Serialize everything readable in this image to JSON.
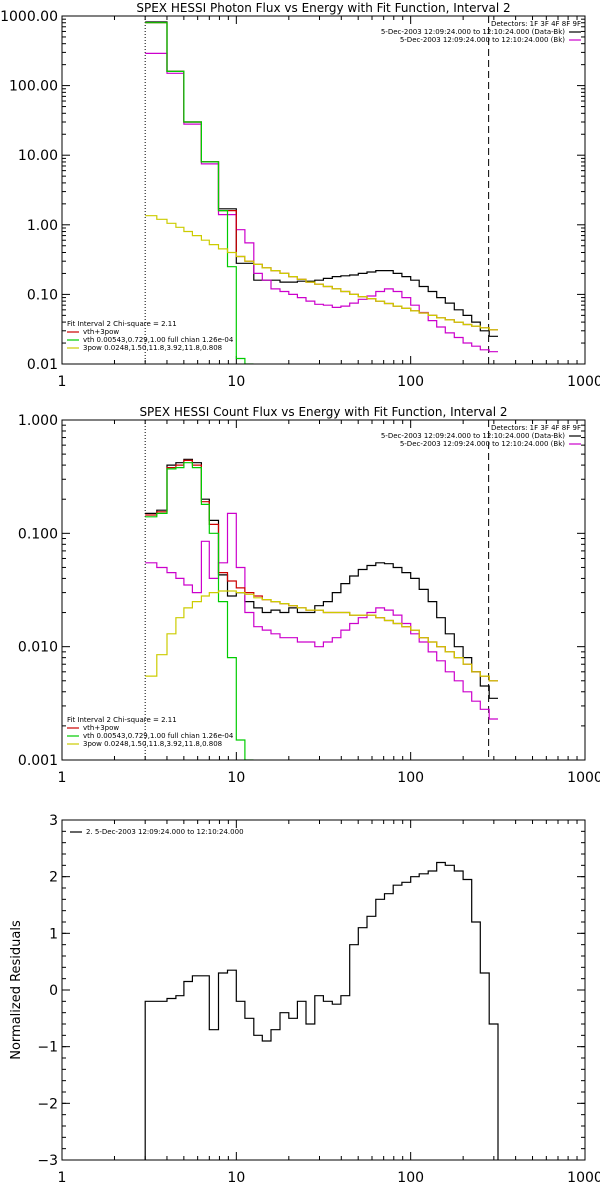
{
  "chart_data": [
    {
      "type": "line",
      "title": "SPEX HESSI Photon Flux vs Energy with Fit Function, Interval 2",
      "xlabel": "",
      "ylabel": "",
      "x_scale": "log",
      "y_scale": "log",
      "xlim": [
        1,
        1000
      ],
      "ylim": [
        0.01,
        1000
      ],
      "x_ticks": [
        "1",
        "10",
        "100",
        "1000"
      ],
      "y_ticks": [
        "0.01",
        "0.10",
        "1.00",
        "10.00",
        "100.00",
        "1000.00"
      ],
      "vlines": [
        {
          "x": 3,
          "style": "dotted"
        },
        {
          "x": 280,
          "style": "dashed"
        }
      ],
      "legend_tr": {
        "header": "Detectors: 1F 3F 4F 8F 9F",
        "entries": [
          {
            "text": "5-Dec-2003 12:09:24.000 to 12:10:24.000 (Data-Bk)",
            "color": "#000000"
          },
          {
            "text": "5-Dec-2003 12:09:24.000 to 12:10:24.000 (Bk)",
            "color": "#cc00cc"
          }
        ]
      },
      "legend_bl": {
        "header": "Fit Interval 2   Chi-square = 2.11",
        "entries": [
          {
            "text": "vth+3pow",
            "color": "#cc0000"
          },
          {
            "text": "vth 0.00543,0.729,1.00  full chian 1.26e-04",
            "color": "#00cc00"
          },
          {
            "text": "3pow 0.0248,1.50,11.8,3.92,11.8,0.808",
            "color": "#cccc00"
          }
        ]
      },
      "series": [
        {
          "name": "Data-Bk",
          "color": "#000000",
          "x": [
            3,
            3.5,
            4,
            4.5,
            5,
            5.6,
            6.3,
            7,
            7.9,
            8.9,
            10,
            11.2,
            12.6,
            14.1,
            15.8,
            17.8,
            20,
            22.4,
            25.1,
            28.2,
            31.6,
            35.5,
            39.8,
            44.7,
            50.1,
            56.2,
            63.1,
            70.8,
            79.4,
            89.1,
            100,
            112,
            126,
            141,
            158,
            178,
            200,
            224,
            251,
            282
          ],
          "y": [
            820,
            820,
            160,
            160,
            30,
            30,
            8,
            8,
            1.7,
            1.7,
            0.28,
            0.28,
            0.16,
            0.16,
            0.16,
            0.15,
            0.15,
            0.155,
            0.155,
            0.16,
            0.17,
            0.18,
            0.185,
            0.19,
            0.2,
            0.21,
            0.22,
            0.22,
            0.2,
            0.18,
            0.16,
            0.13,
            0.11,
            0.09,
            0.075,
            0.06,
            0.05,
            0.04,
            0.03,
            0.025
          ]
        },
        {
          "name": "Bk",
          "color": "#cc00cc",
          "x": [
            3,
            3.5,
            4,
            4.5,
            5,
            5.6,
            6.3,
            7,
            7.9,
            8.9,
            10,
            11.2,
            12.6,
            14.1,
            15.8,
            17.8,
            20,
            22.4,
            25.1,
            28.2,
            31.6,
            35.5,
            39.8,
            44.7,
            50.1,
            56.2,
            63.1,
            70.8,
            79.4,
            89.1,
            100,
            112,
            126,
            141,
            158,
            178,
            200,
            224,
            251,
            282
          ],
          "y": [
            290,
            290,
            150,
            150,
            28,
            28,
            7.5,
            7.5,
            1.4,
            1.4,
            0.85,
            0.55,
            0.2,
            0.16,
            0.12,
            0.11,
            0.1,
            0.09,
            0.08,
            0.072,
            0.07,
            0.065,
            0.068,
            0.075,
            0.085,
            0.095,
            0.11,
            0.12,
            0.11,
            0.09,
            0.07,
            0.055,
            0.042,
            0.034,
            0.028,
            0.024,
            0.02,
            0.018,
            0.016,
            0.015
          ]
        },
        {
          "name": "vth+3pow",
          "color": "#cc0000",
          "x": [
            3,
            3.5,
            4,
            4.5,
            5,
            5.6,
            6.3,
            7,
            7.9,
            8.9,
            10,
            11.2,
            12.6,
            14.1,
            15.8,
            17.8,
            20,
            22.4,
            25.1,
            28.2,
            31.6,
            35.5,
            39.8,
            44.7,
            50.1,
            56.2,
            63.1,
            70.8,
            79.4,
            89.1,
            100,
            112,
            126,
            141,
            158,
            178,
            200,
            224,
            251,
            282
          ],
          "y": [
            800,
            800,
            160,
            160,
            30,
            30,
            8,
            8,
            1.6,
            1.6,
            0.35,
            0.3,
            0.27,
            0.24,
            0.22,
            0.2,
            0.18,
            0.165,
            0.15,
            0.14,
            0.13,
            0.12,
            0.11,
            0.1,
            0.093,
            0.087,
            0.08,
            0.074,
            0.068,
            0.063,
            0.058,
            0.054,
            0.05,
            0.046,
            0.043,
            0.04,
            0.037,
            0.035,
            0.033,
            0.031
          ]
        },
        {
          "name": "vth",
          "color": "#00cc00",
          "x": [
            3,
            3.5,
            4,
            4.5,
            5,
            5.6,
            6.3,
            7,
            7.9,
            8.9,
            10,
            11.2
          ],
          "y": [
            800,
            800,
            160,
            160,
            30,
            30,
            8,
            8,
            1.6,
            0.25,
            0.012,
            0.0001
          ]
        },
        {
          "name": "3pow",
          "color": "#cccc00",
          "x": [
            3,
            3.5,
            4,
            4.5,
            5,
            5.6,
            6.3,
            7,
            7.9,
            8.9,
            10,
            11.2,
            12.6,
            14.1,
            15.8,
            17.8,
            20,
            22.4,
            25.1,
            28.2,
            31.6,
            35.5,
            39.8,
            44.7,
            50.1,
            56.2,
            63.1,
            70.8,
            79.4,
            89.1,
            100,
            112,
            126,
            141,
            158,
            178,
            200,
            224,
            251,
            282
          ],
          "y": [
            1.35,
            1.2,
            1.05,
            0.92,
            0.8,
            0.7,
            0.6,
            0.52,
            0.45,
            0.4,
            0.35,
            0.3,
            0.27,
            0.24,
            0.22,
            0.2,
            0.18,
            0.165,
            0.15,
            0.14,
            0.13,
            0.12,
            0.11,
            0.1,
            0.093,
            0.087,
            0.08,
            0.074,
            0.068,
            0.063,
            0.058,
            0.054,
            0.05,
            0.046,
            0.043,
            0.04,
            0.037,
            0.035,
            0.033,
            0.031
          ]
        }
      ]
    },
    {
      "type": "line",
      "title": "SPEX HESSI Count Flux vs Energy with Fit Function, Interval 2",
      "xlabel": "",
      "ylabel": "",
      "x_scale": "log",
      "y_scale": "log",
      "xlim": [
        1,
        1000
      ],
      "ylim": [
        0.001,
        1
      ],
      "x_ticks": [
        "1",
        "10",
        "100",
        "1000"
      ],
      "y_ticks": [
        "0.001",
        "0.010",
        "0.100",
        "1.000"
      ],
      "vlines": [
        {
          "x": 3,
          "style": "dotted"
        },
        {
          "x": 280,
          "style": "dashed"
        }
      ],
      "legend_tr": {
        "header": "Detectors: 1F 3F 4F 8F 9F",
        "entries": [
          {
            "text": "5-Dec-2003 12:09:24.000 to 12:10:24.000 (Data-Bk)",
            "color": "#000000"
          },
          {
            "text": "5-Dec-2003 12:09:24.000 to 12:10:24.000 (Bk)",
            "color": "#cc00cc"
          }
        ]
      },
      "legend_bl": {
        "header": "Fit Interval 2   Chi-square = 2.11",
        "entries": [
          {
            "text": "vth+3pow",
            "color": "#cc0000"
          },
          {
            "text": "vth 0.00543,0.729,1.00  full chian 1.26e-04",
            "color": "#00cc00"
          },
          {
            "text": "3pow 0.0248,1.50,11.8,3.92,11.8,0.808",
            "color": "#cccc00"
          }
        ]
      },
      "series": [
        {
          "name": "Data-Bk",
          "color": "#000000",
          "x": [
            3,
            3.5,
            4,
            4.5,
            5,
            5.6,
            6.3,
            7,
            7.9,
            8.9,
            10,
            11.2,
            12.6,
            14.1,
            15.8,
            17.8,
            20,
            22.4,
            25.1,
            28.2,
            31.6,
            35.5,
            39.8,
            44.7,
            50.1,
            56.2,
            63.1,
            70.8,
            79.4,
            89.1,
            100,
            112,
            126,
            141,
            158,
            178,
            200,
            224,
            251,
            282
          ],
          "y": [
            0.15,
            0.16,
            0.4,
            0.42,
            0.45,
            0.42,
            0.2,
            0.13,
            0.043,
            0.028,
            0.03,
            0.025,
            0.022,
            0.02,
            0.021,
            0.02,
            0.022,
            0.02,
            0.02,
            0.023,
            0.025,
            0.03,
            0.036,
            0.042,
            0.048,
            0.052,
            0.055,
            0.054,
            0.05,
            0.045,
            0.04,
            0.032,
            0.025,
            0.018,
            0.013,
            0.01,
            0.008,
            0.006,
            0.0045,
            0.0035
          ]
        },
        {
          "name": "Bk",
          "color": "#cc00cc",
          "x": [
            3,
            3.5,
            4,
            4.5,
            5,
            5.6,
            6.3,
            7,
            7.9,
            8.9,
            10,
            11.2,
            12.6,
            14.1,
            15.8,
            17.8,
            20,
            22.4,
            25.1,
            28.2,
            31.6,
            35.5,
            39.8,
            44.7,
            50.1,
            56.2,
            63.1,
            70.8,
            79.4,
            89.1,
            100,
            112,
            126,
            141,
            158,
            178,
            200,
            224,
            251,
            282
          ],
          "y": [
            0.055,
            0.05,
            0.045,
            0.04,
            0.035,
            0.03,
            0.085,
            0.04,
            0.055,
            0.15,
            0.05,
            0.02,
            0.015,
            0.014,
            0.013,
            0.012,
            0.012,
            0.011,
            0.011,
            0.01,
            0.011,
            0.012,
            0.014,
            0.016,
            0.018,
            0.02,
            0.022,
            0.021,
            0.019,
            0.016,
            0.013,
            0.011,
            0.009,
            0.0075,
            0.006,
            0.005,
            0.004,
            0.0033,
            0.0028,
            0.0023
          ]
        },
        {
          "name": "vth+3pow",
          "color": "#cc0000",
          "x": [
            3,
            3.5,
            4,
            4.5,
            5,
            5.6,
            6.3,
            7,
            7.9,
            8.9,
            10,
            11.2,
            12.6,
            14.1,
            15.8,
            17.8,
            20,
            22.4,
            25.1,
            28.2,
            31.6,
            35.5,
            39.8,
            44.7,
            50.1,
            56.2,
            63.1,
            70.8,
            79.4,
            89.1,
            100,
            112,
            126,
            141,
            158,
            178,
            200,
            224,
            251,
            282
          ],
          "y": [
            0.145,
            0.155,
            0.38,
            0.4,
            0.44,
            0.4,
            0.19,
            0.12,
            0.045,
            0.038,
            0.033,
            0.03,
            0.028,
            0.026,
            0.025,
            0.024,
            0.023,
            0.022,
            0.021,
            0.021,
            0.02,
            0.02,
            0.02,
            0.019,
            0.019,
            0.019,
            0.018,
            0.017,
            0.016,
            0.015,
            0.014,
            0.012,
            0.011,
            0.01,
            0.009,
            0.008,
            0.007,
            0.006,
            0.0055,
            0.005
          ]
        },
        {
          "name": "vth",
          "color": "#00cc00",
          "x": [
            3,
            3.5,
            4,
            4.5,
            5,
            5.6,
            6.3,
            7,
            7.9,
            8.9,
            10,
            11.2
          ],
          "y": [
            0.14,
            0.15,
            0.37,
            0.38,
            0.42,
            0.38,
            0.18,
            0.1,
            0.025,
            0.008,
            0.0015,
            0.0005
          ]
        },
        {
          "name": "3pow",
          "color": "#cccc00",
          "x": [
            3,
            3.5,
            4,
            4.5,
            5,
            5.6,
            6.3,
            7,
            7.9,
            8.9,
            10,
            11.2,
            12.6,
            14.1,
            15.8,
            17.8,
            20,
            22.4,
            25.1,
            28.2,
            31.6,
            35.5,
            39.8,
            44.7,
            50.1,
            56.2,
            63.1,
            70.8,
            79.4,
            89.1,
            100,
            112,
            126,
            141,
            158,
            178,
            200,
            224,
            251,
            282
          ],
          "y": [
            0.0055,
            0.0085,
            0.013,
            0.018,
            0.022,
            0.025,
            0.028,
            0.03,
            0.031,
            0.031,
            0.03,
            0.029,
            0.027,
            0.026,
            0.025,
            0.024,
            0.023,
            0.022,
            0.021,
            0.021,
            0.02,
            0.02,
            0.02,
            0.019,
            0.019,
            0.019,
            0.018,
            0.017,
            0.016,
            0.015,
            0.014,
            0.012,
            0.011,
            0.01,
            0.009,
            0.008,
            0.007,
            0.006,
            0.0055,
            0.005
          ]
        }
      ]
    },
    {
      "type": "line",
      "title": "",
      "xlabel": "",
      "ylabel": "Normalized Residuals",
      "x_scale": "log",
      "y_scale": "linear",
      "xlim": [
        1,
        1000
      ],
      "ylim": [
        -3,
        3
      ],
      "x_ticks": [
        "1",
        "10",
        "100",
        "1000"
      ],
      "y_ticks": [
        "-3",
        "-2",
        "-1",
        "0",
        "1",
        "2",
        "3"
      ],
      "legend_tl": {
        "entries": [
          {
            "text": "2. 5-Dec-2003 12:09:24.000 to 12:10:24.000",
            "color": "#000000"
          }
        ]
      },
      "series": [
        {
          "name": "2. 5-Dec-2003 12:09:24.000 to 12:10:24.000",
          "color": "#000000",
          "x": [
            3,
            3.5,
            4,
            4.5,
            5,
            5.6,
            6.3,
            7,
            7.9,
            8.9,
            10,
            11.2,
            12.6,
            14.1,
            15.8,
            17.8,
            20,
            22.4,
            25.1,
            28.2,
            31.6,
            35.5,
            39.8,
            44.7,
            50.1,
            56.2,
            63.1,
            70.8,
            79.4,
            89.1,
            100,
            112,
            126,
            141,
            158,
            178,
            200,
            224,
            251,
            282
          ],
          "y": [
            -0.2,
            -0.2,
            -0.15,
            -0.1,
            0.15,
            0.25,
            0.25,
            -0.7,
            0.3,
            0.35,
            -0.2,
            -0.5,
            -0.8,
            -0.9,
            -0.7,
            -0.4,
            -0.5,
            -0.2,
            -0.6,
            -0.1,
            -0.2,
            -0.25,
            -0.1,
            0.8,
            1.1,
            1.3,
            1.6,
            1.7,
            1.85,
            1.9,
            2.0,
            2.05,
            2.1,
            2.25,
            2.2,
            2.1,
            1.95,
            1.2,
            0.3,
            -0.6
          ]
        }
      ]
    }
  ]
}
